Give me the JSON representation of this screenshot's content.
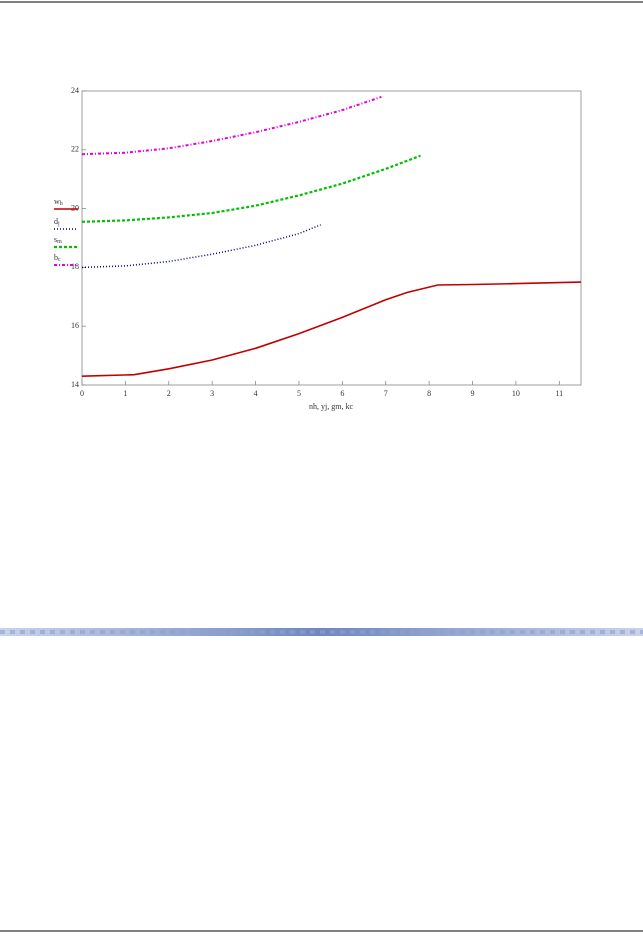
{
  "chart_data": {
    "type": "line",
    "xlabel": "nh, yj, gm, kc",
    "xlim": [
      0,
      11.5
    ],
    "xticks": [
      0,
      1,
      2,
      3,
      4,
      5,
      6,
      7,
      8,
      9,
      10,
      11
    ],
    "ylim": [
      14,
      24
    ],
    "yticks": [
      14,
      16,
      18,
      20,
      22,
      24
    ],
    "series": [
      {
        "name": "wh",
        "color": "#c00000",
        "style": "solid",
        "x": [
          0,
          1.2,
          2,
          3,
          4,
          5,
          6,
          7,
          7.5,
          8.2,
          9,
          10,
          11.5
        ],
        "values": [
          14.3,
          14.35,
          14.55,
          14.85,
          15.25,
          15.75,
          16.3,
          16.9,
          17.15,
          17.4,
          17.42,
          17.45,
          17.5
        ]
      },
      {
        "name": "dj",
        "color": "#000080",
        "style": "dotted",
        "x": [
          0,
          1,
          2,
          3,
          4,
          5,
          5.5
        ],
        "values": [
          18,
          18.05,
          18.2,
          18.45,
          18.75,
          19.15,
          19.45
        ]
      },
      {
        "name": "sm",
        "color": "#00c000",
        "style": "dashed",
        "x": [
          0,
          1,
          2,
          3,
          4,
          5,
          6,
          7,
          7.8
        ],
        "values": [
          19.55,
          19.6,
          19.7,
          19.85,
          20.1,
          20.45,
          20.85,
          21.35,
          21.8
        ]
      },
      {
        "name": "bc",
        "color": "#e000e0",
        "style": "dashdot",
        "x": [
          0,
          1,
          2,
          3,
          4,
          5,
          6,
          6.9
        ],
        "values": [
          21.85,
          21.9,
          22.05,
          22.3,
          22.6,
          22.95,
          23.35,
          23.8
        ]
      }
    ]
  }
}
